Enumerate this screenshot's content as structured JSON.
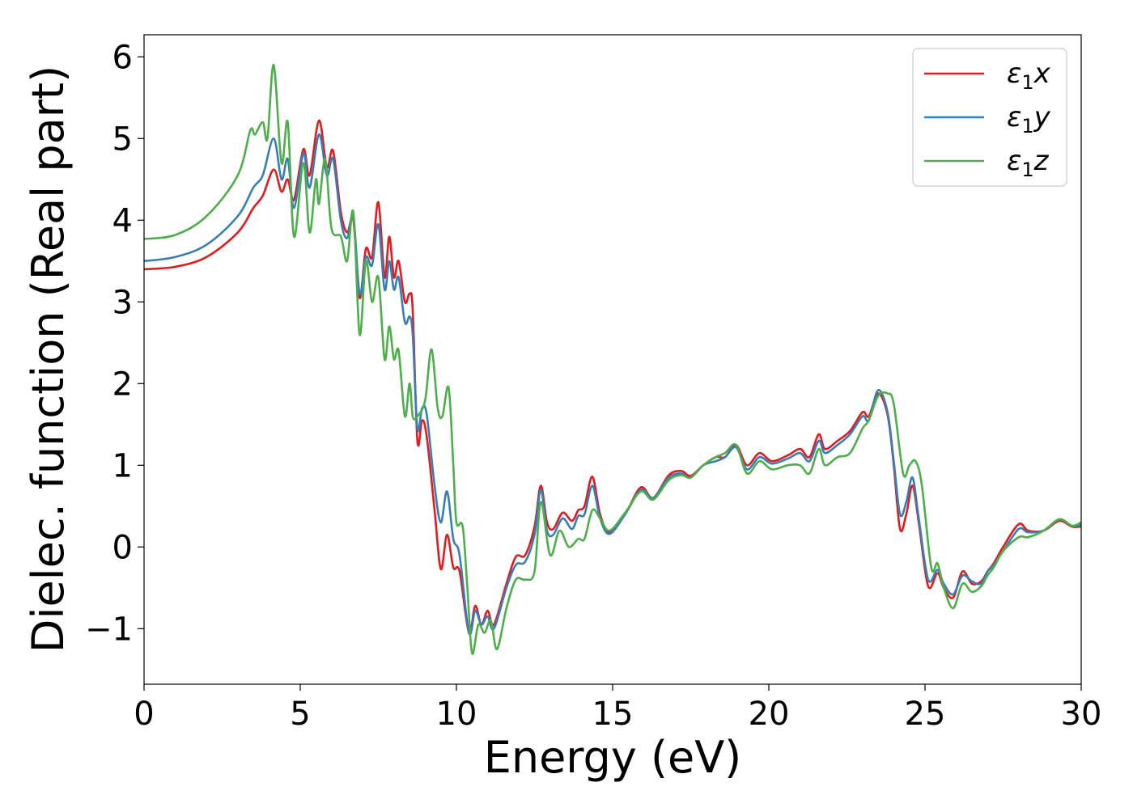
{
  "chart_data": {
    "type": "line",
    "title": "",
    "xlabel": "Energy (eV)",
    "ylabel": "Dielec. function (Real part)",
    "xlim": [
      0,
      30
    ],
    "ylim": [
      -1.68,
      6.27
    ],
    "xticks": [
      0,
      5,
      10,
      15,
      20,
      25,
      30
    ],
    "yticks": [
      -1,
      0,
      1,
      2,
      3,
      4,
      5,
      6
    ],
    "xtick_labels": [
      "0",
      "5",
      "10",
      "15",
      "20",
      "25",
      "30"
    ],
    "ytick_labels": [
      "−1",
      "0",
      "1",
      "2",
      "3",
      "4",
      "5",
      "6"
    ],
    "grid": false,
    "legend_position": "top-right",
    "series": [
      {
        "name": "ε₁x",
        "legend_base": "ε",
        "legend_sub": "1",
        "legend_var": "x",
        "color": "#e41a1c",
        "points": [
          [
            0,
            3.4
          ],
          [
            1,
            3.43
          ],
          [
            2,
            3.55
          ],
          [
            3,
            3.85
          ],
          [
            3.5,
            4.15
          ],
          [
            3.8,
            4.3
          ],
          [
            4.15,
            4.62
          ],
          [
            4.4,
            4.35
          ],
          [
            4.6,
            4.5
          ],
          [
            4.8,
            4.25
          ],
          [
            5.1,
            4.87
          ],
          [
            5.3,
            4.55
          ],
          [
            5.6,
            5.22
          ],
          [
            5.85,
            4.65
          ],
          [
            6.05,
            4.85
          ],
          [
            6.3,
            4.1
          ],
          [
            6.5,
            3.85
          ],
          [
            6.7,
            4.0
          ],
          [
            6.9,
            3.05
          ],
          [
            7.1,
            3.65
          ],
          [
            7.3,
            3.55
          ],
          [
            7.5,
            4.22
          ],
          [
            7.7,
            3.3
          ],
          [
            7.85,
            3.8
          ],
          [
            8.0,
            3.3
          ],
          [
            8.15,
            3.5
          ],
          [
            8.35,
            3.0
          ],
          [
            8.5,
            3.1
          ],
          [
            8.6,
            2.9
          ],
          [
            8.75,
            1.3
          ],
          [
            8.9,
            1.55
          ],
          [
            9.05,
            1.35
          ],
          [
            9.3,
            0.45
          ],
          [
            9.5,
            -0.27
          ],
          [
            9.7,
            0.15
          ],
          [
            9.9,
            -0.25
          ],
          [
            10.1,
            -0.3
          ],
          [
            10.4,
            -1.05
          ],
          [
            10.6,
            -0.72
          ],
          [
            10.8,
            -0.95
          ],
          [
            11.0,
            -0.78
          ],
          [
            11.2,
            -0.95
          ],
          [
            11.6,
            -0.45
          ],
          [
            11.9,
            -0.12
          ],
          [
            12.2,
            -0.1
          ],
          [
            12.5,
            0.25
          ],
          [
            12.7,
            0.75
          ],
          [
            12.9,
            0.3
          ],
          [
            13.1,
            0.22
          ],
          [
            13.4,
            0.42
          ],
          [
            13.7,
            0.32
          ],
          [
            13.9,
            0.45
          ],
          [
            14.1,
            0.5
          ],
          [
            14.35,
            0.86
          ],
          [
            14.6,
            0.4
          ],
          [
            14.9,
            0.18
          ],
          [
            15.4,
            0.4
          ],
          [
            15.9,
            0.73
          ],
          [
            16.3,
            0.6
          ],
          [
            16.8,
            0.88
          ],
          [
            17.2,
            0.93
          ],
          [
            17.5,
            0.87
          ],
          [
            17.9,
            1.0
          ],
          [
            18.3,
            1.1
          ],
          [
            18.6,
            1.1
          ],
          [
            18.95,
            1.25
          ],
          [
            19.3,
            1.0
          ],
          [
            19.7,
            1.15
          ],
          [
            20.1,
            1.05
          ],
          [
            20.6,
            1.12
          ],
          [
            21.0,
            1.2
          ],
          [
            21.3,
            1.1
          ],
          [
            21.6,
            1.38
          ],
          [
            21.8,
            1.2
          ],
          [
            22.2,
            1.3
          ],
          [
            22.6,
            1.42
          ],
          [
            23.0,
            1.65
          ],
          [
            23.2,
            1.6
          ],
          [
            23.5,
            1.88
          ],
          [
            23.8,
            1.62
          ],
          [
            24.0,
            1.0
          ],
          [
            24.2,
            0.22
          ],
          [
            24.4,
            0.4
          ],
          [
            24.6,
            0.75
          ],
          [
            24.8,
            0.3
          ],
          [
            25.1,
            -0.48
          ],
          [
            25.4,
            -0.32
          ],
          [
            25.6,
            -0.5
          ],
          [
            25.9,
            -0.62
          ],
          [
            26.2,
            -0.3
          ],
          [
            26.5,
            -0.45
          ],
          [
            26.8,
            -0.42
          ],
          [
            27.0,
            -0.3
          ],
          [
            27.2,
            -0.2
          ],
          [
            27.5,
            0.0
          ],
          [
            28.0,
            0.28
          ],
          [
            28.3,
            0.2
          ],
          [
            28.8,
            0.2
          ],
          [
            29.3,
            0.32
          ],
          [
            29.7,
            0.25
          ],
          [
            30,
            0.25
          ]
        ]
      },
      {
        "name": "ε₁y",
        "legend_base": "ε",
        "legend_sub": "1",
        "legend_var": "y",
        "color": "#377eb8",
        "points": [
          [
            0,
            3.5
          ],
          [
            1,
            3.55
          ],
          [
            2,
            3.7
          ],
          [
            3,
            4.05
          ],
          [
            3.5,
            4.4
          ],
          [
            3.8,
            4.55
          ],
          [
            4.15,
            5.0
          ],
          [
            4.4,
            4.5
          ],
          [
            4.6,
            4.75
          ],
          [
            4.8,
            4.15
          ],
          [
            5.1,
            4.82
          ],
          [
            5.3,
            4.4
          ],
          [
            5.6,
            5.05
          ],
          [
            5.85,
            4.55
          ],
          [
            6.05,
            4.75
          ],
          [
            6.3,
            4.0
          ],
          [
            6.5,
            3.78
          ],
          [
            6.7,
            4.05
          ],
          [
            6.9,
            3.1
          ],
          [
            7.1,
            3.55
          ],
          [
            7.3,
            3.45
          ],
          [
            7.5,
            3.95
          ],
          [
            7.7,
            3.15
          ],
          [
            7.85,
            3.5
          ],
          [
            8.0,
            3.15
          ],
          [
            8.15,
            3.3
          ],
          [
            8.35,
            2.75
          ],
          [
            8.5,
            2.82
          ],
          [
            8.6,
            2.6
          ],
          [
            8.75,
            1.45
          ],
          [
            8.9,
            1.7
          ],
          [
            9.05,
            1.62
          ],
          [
            9.3,
            0.75
          ],
          [
            9.5,
            0.3
          ],
          [
            9.7,
            0.68
          ],
          [
            9.9,
            0.1
          ],
          [
            10.1,
            -0.1
          ],
          [
            10.4,
            -1.05
          ],
          [
            10.6,
            -0.78
          ],
          [
            10.8,
            -0.95
          ],
          [
            11.0,
            -0.85
          ],
          [
            11.2,
            -1.0
          ],
          [
            11.6,
            -0.5
          ],
          [
            11.9,
            -0.22
          ],
          [
            12.2,
            -0.18
          ],
          [
            12.5,
            0.15
          ],
          [
            12.7,
            0.7
          ],
          [
            12.9,
            0.2
          ],
          [
            13.1,
            0.15
          ],
          [
            13.4,
            0.35
          ],
          [
            13.7,
            0.22
          ],
          [
            13.9,
            0.38
          ],
          [
            14.1,
            0.4
          ],
          [
            14.35,
            0.75
          ],
          [
            14.6,
            0.35
          ],
          [
            14.9,
            0.16
          ],
          [
            15.4,
            0.4
          ],
          [
            15.9,
            0.7
          ],
          [
            16.3,
            0.6
          ],
          [
            16.8,
            0.85
          ],
          [
            17.2,
            0.9
          ],
          [
            17.5,
            0.85
          ],
          [
            17.9,
            1.0
          ],
          [
            18.3,
            1.05
          ],
          [
            18.6,
            1.1
          ],
          [
            18.95,
            1.22
          ],
          [
            19.3,
            0.95
          ],
          [
            19.7,
            1.1
          ],
          [
            20.1,
            1.02
          ],
          [
            20.6,
            1.08
          ],
          [
            21.0,
            1.15
          ],
          [
            21.3,
            1.05
          ],
          [
            21.6,
            1.3
          ],
          [
            21.8,
            1.15
          ],
          [
            22.2,
            1.25
          ],
          [
            22.6,
            1.38
          ],
          [
            23.0,
            1.6
          ],
          [
            23.2,
            1.55
          ],
          [
            23.5,
            1.92
          ],
          [
            23.8,
            1.65
          ],
          [
            24.0,
            1.05
          ],
          [
            24.2,
            0.4
          ],
          [
            24.4,
            0.55
          ],
          [
            24.6,
            0.85
          ],
          [
            24.8,
            0.35
          ],
          [
            25.1,
            -0.4
          ],
          [
            25.4,
            -0.28
          ],
          [
            25.6,
            -0.45
          ],
          [
            25.9,
            -0.58
          ],
          [
            26.2,
            -0.35
          ],
          [
            26.5,
            -0.42
          ],
          [
            26.8,
            -0.45
          ],
          [
            27.0,
            -0.3
          ],
          [
            27.2,
            -0.22
          ],
          [
            27.5,
            -0.05
          ],
          [
            28.0,
            0.22
          ],
          [
            28.3,
            0.18
          ],
          [
            28.8,
            0.2
          ],
          [
            29.3,
            0.34
          ],
          [
            29.7,
            0.26
          ],
          [
            30,
            0.27
          ]
        ]
      },
      {
        "name": "ε₁z",
        "legend_base": "ε",
        "legend_sub": "1",
        "legend_var": "z",
        "color": "#4daf4a",
        "points": [
          [
            0,
            3.77
          ],
          [
            1,
            3.82
          ],
          [
            2,
            4.05
          ],
          [
            3,
            4.55
          ],
          [
            3.4,
            5.1
          ],
          [
            3.55,
            5.05
          ],
          [
            3.8,
            5.2
          ],
          [
            3.95,
            5.0
          ],
          [
            4.15,
            5.9
          ],
          [
            4.4,
            4.7
          ],
          [
            4.6,
            5.2
          ],
          [
            4.8,
            3.8
          ],
          [
            5.1,
            4.7
          ],
          [
            5.3,
            3.85
          ],
          [
            5.5,
            4.5
          ],
          [
            5.6,
            4.2
          ],
          [
            5.8,
            4.75
          ],
          [
            6.0,
            3.9
          ],
          [
            6.3,
            3.8
          ],
          [
            6.5,
            3.5
          ],
          [
            6.7,
            4.1
          ],
          [
            6.9,
            2.6
          ],
          [
            7.1,
            3.5
          ],
          [
            7.3,
            3.0
          ],
          [
            7.5,
            3.3
          ],
          [
            7.7,
            2.3
          ],
          [
            7.85,
            2.7
          ],
          [
            8.0,
            2.3
          ],
          [
            8.15,
            2.4
          ],
          [
            8.35,
            1.6
          ],
          [
            8.5,
            2.0
          ],
          [
            8.6,
            1.6
          ],
          [
            8.75,
            1.6
          ],
          [
            9.0,
            1.8
          ],
          [
            9.2,
            2.42
          ],
          [
            9.4,
            1.7
          ],
          [
            9.55,
            1.6
          ],
          [
            9.75,
            1.95
          ],
          [
            9.9,
            1.0
          ],
          [
            10.0,
            0.3
          ],
          [
            10.2,
            0.25
          ],
          [
            10.35,
            -0.5
          ],
          [
            10.5,
            -1.3
          ],
          [
            10.7,
            -0.95
          ],
          [
            10.9,
            -1.05
          ],
          [
            11.1,
            -0.9
          ],
          [
            11.3,
            -1.25
          ],
          [
            11.6,
            -0.75
          ],
          [
            11.9,
            -0.4
          ],
          [
            12.2,
            -0.4
          ],
          [
            12.5,
            -0.3
          ],
          [
            12.7,
            0.55
          ],
          [
            13.0,
            -0.1
          ],
          [
            13.3,
            0.2
          ],
          [
            13.6,
            0.0
          ],
          [
            13.9,
            0.1
          ],
          [
            14.1,
            0.1
          ],
          [
            14.35,
            0.45
          ],
          [
            14.6,
            0.35
          ],
          [
            14.9,
            0.2
          ],
          [
            15.4,
            0.42
          ],
          [
            15.9,
            0.68
          ],
          [
            16.3,
            0.58
          ],
          [
            16.8,
            0.82
          ],
          [
            17.2,
            0.88
          ],
          [
            17.5,
            0.85
          ],
          [
            17.9,
            1.0
          ],
          [
            18.3,
            1.1
          ],
          [
            18.6,
            1.15
          ],
          [
            18.95,
            1.25
          ],
          [
            19.3,
            0.9
          ],
          [
            19.7,
            1.05
          ],
          [
            20.1,
            0.95
          ],
          [
            20.6,
            1.0
          ],
          [
            21.0,
            1.0
          ],
          [
            21.3,
            0.9
          ],
          [
            21.6,
            1.2
          ],
          [
            21.8,
            1.0
          ],
          [
            22.2,
            1.1
          ],
          [
            22.6,
            1.15
          ],
          [
            23.0,
            1.45
          ],
          [
            23.2,
            1.55
          ],
          [
            23.5,
            1.85
          ],
          [
            23.8,
            1.88
          ],
          [
            24.0,
            1.75
          ],
          [
            24.3,
            0.9
          ],
          [
            24.5,
            1.0
          ],
          [
            24.7,
            1.05
          ],
          [
            24.9,
            0.75
          ],
          [
            25.2,
            -0.25
          ],
          [
            25.4,
            -0.2
          ],
          [
            25.6,
            -0.5
          ],
          [
            25.9,
            -0.75
          ],
          [
            26.2,
            -0.45
          ],
          [
            26.5,
            -0.55
          ],
          [
            26.8,
            -0.48
          ],
          [
            27.0,
            -0.35
          ],
          [
            27.2,
            -0.25
          ],
          [
            27.5,
            -0.05
          ],
          [
            28.0,
            0.12
          ],
          [
            28.3,
            0.12
          ],
          [
            28.8,
            0.2
          ],
          [
            29.3,
            0.34
          ],
          [
            29.7,
            0.26
          ],
          [
            30,
            0.3
          ]
        ]
      }
    ]
  }
}
